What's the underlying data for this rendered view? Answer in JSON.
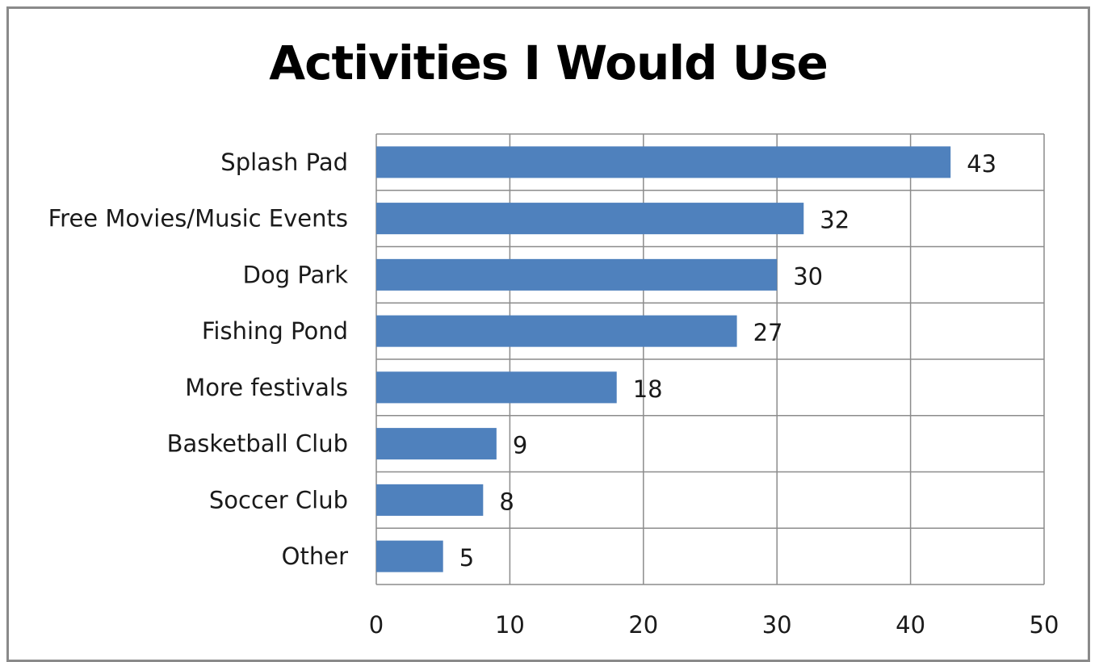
{
  "chart_data": {
    "type": "bar",
    "orientation": "horizontal",
    "title": "Activities I Would Use",
    "categories": [
      "Splash Pad",
      "Free Movies/Music Events",
      "Dog Park",
      "Fishing Pond",
      "More festivals",
      "Basketball Club",
      "Soccer Club",
      "Other"
    ],
    "values": [
      43,
      32,
      30,
      27,
      18,
      9,
      8,
      5
    ],
    "xlim": [
      0,
      50
    ],
    "xticks": [
      0,
      10,
      20,
      30,
      40,
      50
    ],
    "grid": true,
    "legend": "none",
    "data_labels": true,
    "bar_color": "#4f81bd"
  }
}
